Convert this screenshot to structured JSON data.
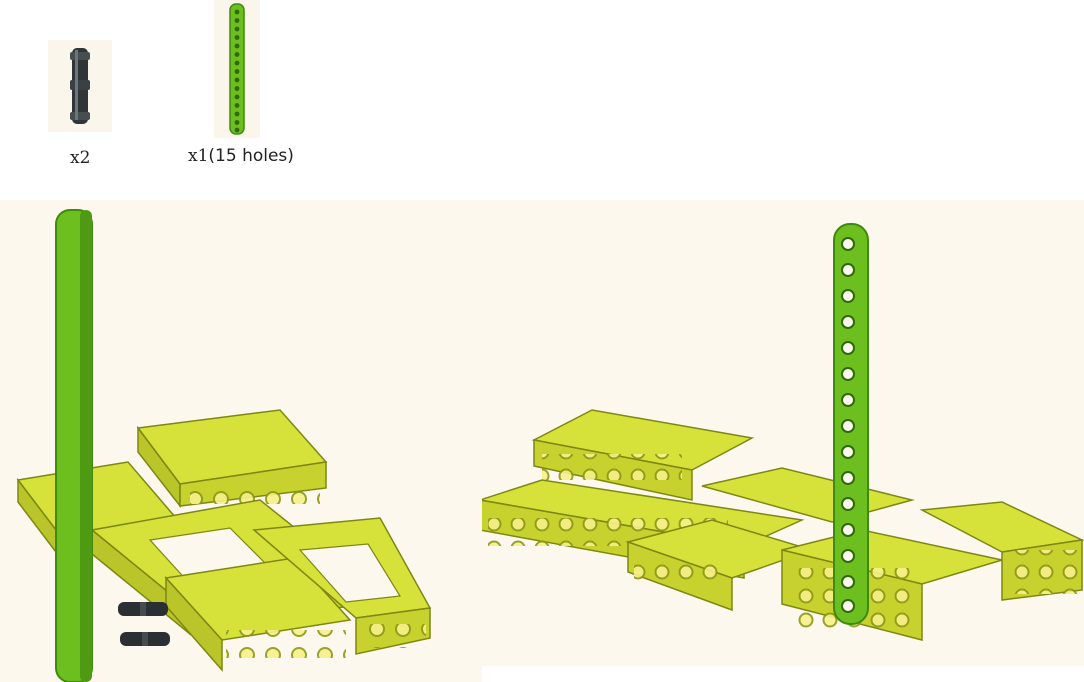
{
  "parts": [
    {
      "name": "connector-pin",
      "quantity_label": "x2",
      "quantity": 2
    },
    {
      "name": "green-beam",
      "quantity_label": "x1",
      "note": "(15 holes)",
      "quantity": 1,
      "holes": 15
    }
  ],
  "colors": {
    "beam_green": "#6cbf1e",
    "beam_green_dark": "#3f8a0c",
    "frame_lime": "#d6e23a",
    "frame_shadow": "#9aa520",
    "pin_black": "#2a2f33",
    "panel_bg": "#fdf8ee"
  },
  "steps": [
    {
      "name": "exploded-assembly-view"
    },
    {
      "name": "assembled-view"
    }
  ]
}
